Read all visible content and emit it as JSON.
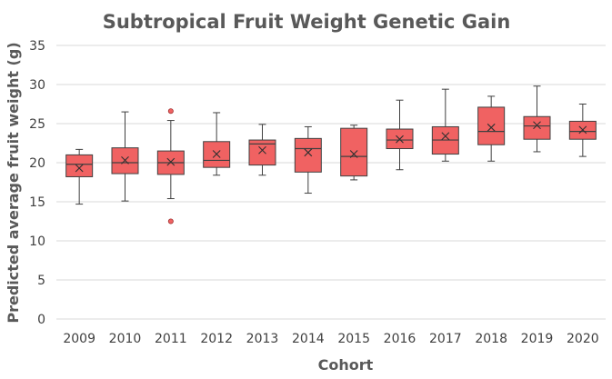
{
  "chart_data": {
    "type": "box",
    "title": "Subtropical Fruit Weight Genetic Gain",
    "xlabel": "Cohort",
    "ylabel": "Predicted average fruit weight (g)",
    "ylim": [
      0,
      35
    ],
    "yticks": [
      0,
      5,
      10,
      15,
      20,
      25,
      30,
      35
    ],
    "grid": true,
    "colors": {
      "box_fill": "#f06262",
      "box_stroke": "#404040",
      "outlier_fill": "#f06262"
    },
    "categories": [
      "2009",
      "2010",
      "2011",
      "2012",
      "2013",
      "2014",
      "2015",
      "2016",
      "2017",
      "2018",
      "2019",
      "2020"
    ],
    "boxes": [
      {
        "cohort": "2009",
        "min": 14.7,
        "q1": 18.2,
        "median": 19.8,
        "q3": 21.0,
        "max": 21.7,
        "mean": 19.3,
        "outliers": []
      },
      {
        "cohort": "2010",
        "min": 15.1,
        "q1": 18.6,
        "median": 20.0,
        "q3": 21.9,
        "max": 26.5,
        "mean": 20.3,
        "outliers": []
      },
      {
        "cohort": "2011",
        "min": 15.4,
        "q1": 18.5,
        "median": 20.0,
        "q3": 21.5,
        "max": 25.4,
        "mean": 20.1,
        "outliers": [
          26.6,
          12.5
        ]
      },
      {
        "cohort": "2012",
        "min": 18.4,
        "q1": 19.4,
        "median": 20.3,
        "q3": 22.7,
        "max": 26.4,
        "mean": 21.1,
        "outliers": []
      },
      {
        "cohort": "2013",
        "min": 18.4,
        "q1": 19.7,
        "median": 22.4,
        "q3": 22.9,
        "max": 24.9,
        "mean": 21.6,
        "outliers": []
      },
      {
        "cohort": "2014",
        "min": 16.1,
        "q1": 18.8,
        "median": 21.8,
        "q3": 23.1,
        "max": 24.6,
        "mean": 21.3,
        "outliers": []
      },
      {
        "cohort": "2015",
        "min": 17.8,
        "q1": 18.3,
        "median": 20.8,
        "q3": 24.4,
        "max": 24.8,
        "mean": 21.1,
        "outliers": []
      },
      {
        "cohort": "2016",
        "min": 19.1,
        "q1": 21.8,
        "median": 22.9,
        "q3": 24.3,
        "max": 28.0,
        "mean": 23.0,
        "outliers": []
      },
      {
        "cohort": "2017",
        "min": 20.2,
        "q1": 21.1,
        "median": 22.9,
        "q3": 24.6,
        "max": 29.4,
        "mean": 23.4,
        "outliers": []
      },
      {
        "cohort": "2018",
        "min": 20.2,
        "q1": 22.3,
        "median": 24.0,
        "q3": 27.1,
        "max": 28.5,
        "mean": 24.5,
        "outliers": []
      },
      {
        "cohort": "2019",
        "min": 21.4,
        "q1": 23.0,
        "median": 24.7,
        "q3": 25.9,
        "max": 29.8,
        "mean": 24.8,
        "outliers": []
      },
      {
        "cohort": "2020",
        "min": 20.8,
        "q1": 23.0,
        "median": 24.0,
        "q3": 25.3,
        "max": 27.5,
        "mean": 24.2,
        "outliers": []
      }
    ]
  }
}
